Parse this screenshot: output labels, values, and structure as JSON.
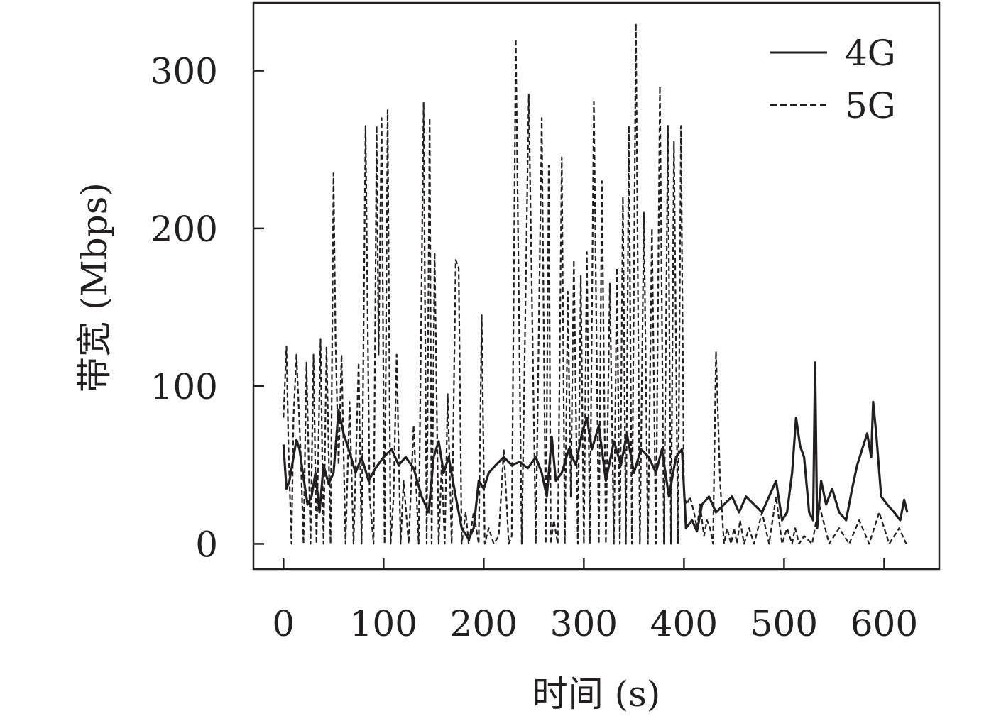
{
  "chart_data": {
    "type": "line",
    "title": "",
    "xlabel": "时间 (s)",
    "ylabel": "带宽 (Mbps)",
    "xlim": [
      -30,
      655
    ],
    "ylim": [
      -16,
      343
    ],
    "x_ticks": [
      0,
      100,
      200,
      300,
      400,
      500,
      600
    ],
    "y_ticks": [
      0,
      100,
      200,
      300
    ],
    "x_tick_labels": [
      "0",
      "100",
      "200",
      "300",
      "400",
      "500",
      "600"
    ],
    "y_tick_labels": [
      "0",
      "100",
      "200",
      "300"
    ],
    "grid": false,
    "legend_position": "top-right",
    "series": [
      {
        "name": "4G",
        "line_style": "solid",
        "color": "#231f20",
        "x": [
          0,
          3,
          6,
          10,
          13,
          16,
          20,
          24,
          28,
          32,
          36,
          40,
          45,
          50,
          55,
          60,
          66,
          72,
          78,
          85,
          92,
          100,
          108,
          115,
          122,
          130,
          138,
          145,
          150,
          155,
          160,
          165,
          172,
          178,
          185,
          190,
          195,
          200,
          205,
          212,
          220,
          228,
          236,
          244,
          252,
          258,
          263,
          268,
          272,
          278,
          285,
          292,
          298,
          303,
          308,
          315,
          322,
          330,
          337,
          343,
          350,
          357,
          365,
          372,
          378,
          385,
          392,
          398,
          402,
          408,
          413,
          418,
          425,
          432,
          440,
          448,
          455,
          462,
          470,
          478,
          485,
          492,
          498,
          503,
          508,
          512,
          516,
          520,
          525,
          529,
          531,
          533,
          537,
          542,
          548,
          555,
          562,
          568,
          573,
          578,
          583,
          587,
          589,
          592,
          597,
          603,
          610,
          616,
          620,
          623
        ],
        "y": [
          63,
          35,
          40,
          55,
          66,
          60,
          42,
          25,
          30,
          45,
          20,
          50,
          38,
          45,
          85,
          70,
          58,
          45,
          55,
          40,
          48,
          55,
          60,
          50,
          55,
          48,
          30,
          20,
          55,
          65,
          45,
          55,
          30,
          10,
          3,
          10,
          40,
          35,
          45,
          50,
          55,
          50,
          52,
          48,
          55,
          45,
          30,
          68,
          40,
          45,
          60,
          50,
          70,
          80,
          60,
          75,
          40,
          65,
          50,
          70,
          45,
          60,
          55,
          45,
          60,
          30,
          55,
          60,
          10,
          15,
          8,
          25,
          30,
          20,
          25,
          30,
          20,
          30,
          25,
          20,
          30,
          40,
          15,
          20,
          45,
          80,
          62,
          55,
          20,
          15,
          115,
          10,
          40,
          25,
          35,
          20,
          15,
          35,
          50,
          60,
          70,
          55,
          90,
          70,
          30,
          25,
          20,
          15,
          28,
          20
        ]
      },
      {
        "name": "5G",
        "line_style": "dashed",
        "color": "#231f20",
        "x": [
          0,
          3,
          5,
          8,
          10,
          13,
          17,
          20,
          23,
          27,
          30,
          33,
          37,
          40,
          43,
          47,
          50,
          52,
          55,
          58,
          62,
          66,
          70,
          75,
          78,
          82,
          86,
          90,
          93,
          95,
          98,
          101,
          104,
          107,
          110,
          113,
          117,
          120,
          125,
          130,
          135,
          140,
          143,
          146,
          148,
          151,
          155,
          158,
          161,
          164,
          168,
          172,
          175,
          178,
          182,
          185,
          190,
          195,
          198,
          201,
          205,
          210,
          215,
          220,
          225,
          228,
          232,
          238,
          245,
          252,
          258,
          262,
          265,
          267,
          270,
          274,
          278,
          281,
          284,
          287,
          290,
          294,
          297,
          300,
          303,
          306,
          310,
          315,
          318,
          322,
          326,
          330,
          333,
          336,
          339,
          342,
          345,
          348,
          352,
          356,
          360,
          364,
          368,
          372,
          376,
          380,
          384,
          387,
          390,
          394,
          397,
          400,
          403,
          406,
          410,
          413,
          416,
          420,
          423,
          426,
          429,
          432,
          436,
          440,
          443,
          447,
          450,
          453,
          456,
          460,
          465,
          470,
          478,
          485,
          492,
          498,
          503,
          508,
          511,
          515,
          520,
          528,
          535,
          545,
          555,
          565,
          575,
          585,
          595,
          605,
          615,
          622
        ],
        "y": [
          80,
          125,
          60,
          0,
          80,
          120,
          60,
          0,
          115,
          0,
          120,
          0,
          130,
          0,
          125,
          0,
          235,
          130,
          50,
          120,
          0,
          90,
          0,
          115,
          0,
          265,
          30,
          0,
          265,
          120,
          270,
          0,
          275,
          0,
          30,
          120,
          0,
          40,
          0,
          75,
          0,
          280,
          0,
          270,
          0,
          185,
          0,
          50,
          0,
          95,
          0,
          180,
          175,
          0,
          20,
          0,
          20,
          0,
          145,
          0,
          10,
          0,
          5,
          60,
          0,
          5,
          320,
          0,
          285,
          0,
          270,
          0,
          240,
          0,
          15,
          0,
          245,
          0,
          160,
          30,
          180,
          0,
          170,
          0,
          185,
          0,
          280,
          0,
          230,
          0,
          165,
          0,
          175,
          0,
          220,
          0,
          265,
          0,
          330,
          0,
          210,
          0,
          200,
          0,
          290,
          0,
          265,
          0,
          255,
          0,
          265,
          30,
          25,
          30,
          20,
          10,
          25,
          5,
          15,
          10,
          0,
          122,
          40,
          0,
          10,
          0,
          10,
          0,
          15,
          0,
          10,
          0,
          20,
          0,
          30,
          0,
          10,
          0,
          10,
          0,
          5,
          0,
          25,
          0,
          10,
          0,
          15,
          0,
          20,
          0,
          10,
          0
        ]
      }
    ]
  }
}
